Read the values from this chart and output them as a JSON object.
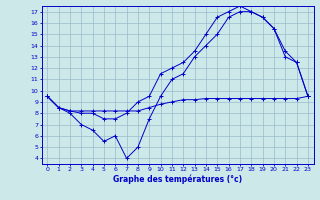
{
  "xlabel": "Graphe des températures (°c)",
  "bg_color": "#cce8e8",
  "line_color": "#0000cc",
  "grid_color": "#99bbcc",
  "xlim": [
    -0.5,
    23.5
  ],
  "ylim": [
    3.5,
    17.5
  ],
  "xticks": [
    0,
    1,
    2,
    3,
    4,
    5,
    6,
    7,
    8,
    9,
    10,
    11,
    12,
    13,
    14,
    15,
    16,
    17,
    18,
    19,
    20,
    21,
    22,
    23
  ],
  "yticks": [
    4,
    5,
    6,
    7,
    8,
    9,
    10,
    11,
    12,
    13,
    14,
    15,
    16,
    17
  ],
  "line1_x": [
    0,
    1,
    2,
    3,
    4,
    5,
    6,
    7,
    8,
    9,
    10,
    11,
    12,
    13,
    14,
    15,
    16,
    17,
    18,
    19,
    20,
    21,
    22,
    23
  ],
  "line1_y": [
    9.5,
    8.5,
    8.0,
    7.0,
    6.5,
    5.5,
    6.0,
    4.0,
    5.0,
    7.5,
    9.5,
    11.0,
    11.5,
    13.0,
    14.0,
    15.0,
    16.5,
    17.0,
    17.0,
    16.5,
    15.5,
    13.0,
    12.5,
    9.5
  ],
  "line2_x": [
    0,
    1,
    2,
    3,
    4,
    5,
    6,
    7,
    8,
    9,
    10,
    11,
    12,
    13,
    14,
    15,
    16,
    17,
    18,
    19,
    20,
    21,
    22,
    23
  ],
  "line2_y": [
    9.5,
    8.5,
    8.2,
    8.2,
    8.2,
    8.2,
    8.2,
    8.2,
    8.2,
    8.5,
    8.8,
    9.0,
    9.2,
    9.2,
    9.3,
    9.3,
    9.3,
    9.3,
    9.3,
    9.3,
    9.3,
    9.3,
    9.3,
    9.5
  ],
  "line3_x": [
    0,
    1,
    2,
    3,
    4,
    5,
    6,
    7,
    8,
    9,
    10,
    11,
    12,
    13,
    14,
    15,
    16,
    17,
    18,
    19,
    20,
    21,
    22,
    23
  ],
  "line3_y": [
    9.5,
    8.5,
    8.2,
    8.0,
    8.0,
    7.5,
    7.5,
    8.0,
    9.0,
    9.5,
    11.5,
    12.0,
    12.5,
    13.5,
    15.0,
    16.5,
    17.0,
    17.5,
    17.0,
    16.5,
    15.5,
    13.5,
    12.5,
    9.5
  ]
}
